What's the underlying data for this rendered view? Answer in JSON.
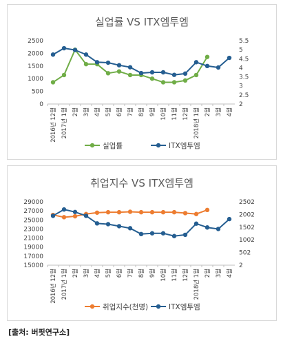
{
  "source": "[출처: 버핏연구소]",
  "chart_data": [
    {
      "type": "line",
      "title": "실업률 VS ITX엠투엠",
      "categories": [
        "2016년 12월",
        "2017년 1월",
        "2월",
        "3월",
        "4월",
        "5월",
        "6월",
        "7월",
        "8월",
        "9월",
        "10월",
        "11월",
        "12월",
        "2018년 1월",
        "2월",
        "3월",
        "4월"
      ],
      "left_axis": {
        "min": 0,
        "max": 2500,
        "ticks": [
          "0",
          "500",
          "1000",
          "1500",
          "2000",
          "2500"
        ]
      },
      "right_axis": {
        "min": 2,
        "max": 5.5,
        "ticks": [
          "2",
          "2.5",
          "3",
          "3.5",
          "4",
          "4.5",
          "5",
          "5.5"
        ]
      },
      "series": [
        {
          "name": "실업률",
          "axis": "right",
          "color": "#70ad47",
          "values": [
            3.2,
            3.6,
            5.0,
            4.2,
            4.2,
            3.7,
            3.8,
            3.6,
            3.6,
            3.4,
            3.2,
            3.2,
            3.3,
            3.6,
            4.6,
            null,
            null
          ]
        },
        {
          "name": "ITX엠투엠",
          "axis": "left",
          "color": "#255e91",
          "values": [
            1950,
            2200,
            2130,
            1950,
            1650,
            1630,
            1530,
            1450,
            1220,
            1250,
            1250,
            1150,
            1200,
            1650,
            1500,
            1440,
            1820
          ]
        }
      ],
      "legend": "bottom"
    },
    {
      "type": "line",
      "title": "취업지수 VS ITX엠투엠",
      "categories": [
        "2016년 12월",
        "2017년 1월",
        "2월",
        "3월",
        "4월",
        "5월",
        "6월",
        "7월",
        "8월",
        "9월",
        "10월",
        "11월",
        "12월",
        "2018년 1월",
        "2월",
        "3월",
        "4월"
      ],
      "left_axis": {
        "min": 15000,
        "max": 29000,
        "ticks": [
          "15000",
          "17000",
          "19000",
          "21000",
          "23000",
          "25000",
          "27000",
          "29000"
        ]
      },
      "right_axis": {
        "min": 2,
        "max": 2502,
        "ticks": [
          "2",
          "502",
          "1002",
          "1502",
          "2002",
          "2502"
        ]
      },
      "series": [
        {
          "name": "취업지수(천명)",
          "axis": "left",
          "color": "#ed7d31",
          "values": [
            26100,
            25600,
            25800,
            26300,
            26600,
            26700,
            26700,
            26800,
            26700,
            26700,
            26700,
            26700,
            26500,
            26300,
            27200,
            null,
            null
          ]
        },
        {
          "name": "ITX엠투엠",
          "axis": "right",
          "color": "#255e91",
          "values": [
            1950,
            2200,
            2100,
            1950,
            1650,
            1620,
            1540,
            1460,
            1230,
            1260,
            1260,
            1150,
            1200,
            1640,
            1490,
            1430,
            1820
          ]
        }
      ],
      "legend": "bottom"
    }
  ]
}
